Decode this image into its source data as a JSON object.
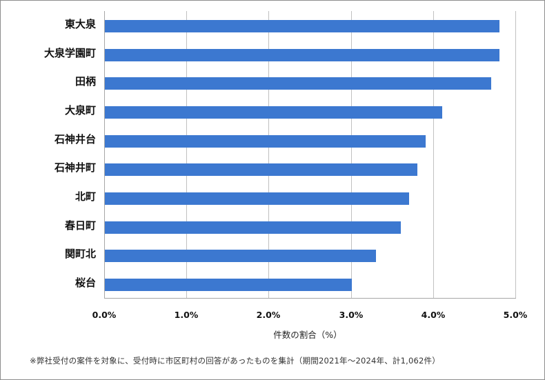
{
  "chart_data": {
    "type": "bar",
    "orientation": "horizontal",
    "title": "",
    "xlabel": "件数の割合（%）",
    "ylabel": "",
    "categories": [
      "東大泉",
      "大泉学園町",
      "田柄",
      "大泉町",
      "石神井台",
      "石神井町",
      "北町",
      "春日町",
      "関町北",
      "桜台"
    ],
    "values": [
      4.8,
      4.8,
      4.7,
      4.1,
      3.9,
      3.8,
      3.7,
      3.6,
      3.3,
      3.0
    ],
    "unit": "%",
    "xlim": [
      0,
      5.0
    ],
    "x_ticks": [
      "0.0%",
      "1.0%",
      "2.0%",
      "3.0%",
      "4.0%",
      "5.0%"
    ],
    "grid": true,
    "legend": null,
    "bar_color": "#3c78d0",
    "footnote": "※弊社受付の案件を対象に、受付時に市区町村の回答があったものを集計（期間2021年～2024年、計1,062件）"
  }
}
